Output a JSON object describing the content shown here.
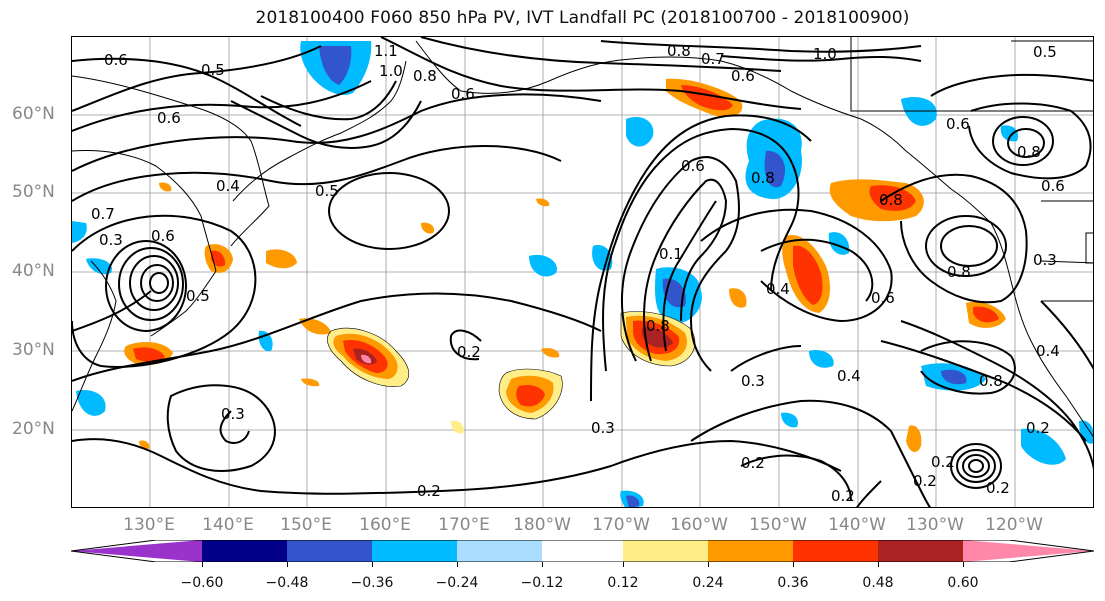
{
  "title": "2018100400 F060 850 hPa PV, IVT Landfall PC (2018100700 - 2018100900)",
  "lat_labels": [
    "60°N",
    "50°N",
    "40°N",
    "30°N",
    "20°N"
  ],
  "lon_labels": [
    "130°E",
    "140°E",
    "150°E",
    "160°E",
    "170°E",
    "180°W",
    "170°W",
    "160°W",
    "150°W",
    "140°W",
    "130°W",
    "120°W"
  ],
  "contour_labels": {
    "l0": "0.6",
    "l1": "0.5",
    "l2": "0.6",
    "l3": "0.4",
    "l4": "0.3",
    "l5": "0.5",
    "l6": "1.1",
    "l7": "1.0",
    "l8": "0.8",
    "l9": "0.6",
    "l10": "0.8",
    "l11": "0.7",
    "l12": "0.6",
    "l13": "1.0",
    "l14": "0.5",
    "l15": "0.6",
    "l16": "0.8",
    "l17": "0.6",
    "l18": "0.8",
    "l19": "0.1",
    "l20": "0.6",
    "l21": "0.5",
    "l22": "0.2",
    "l23": "0.3",
    "l24": "0.8",
    "l25": "0.3",
    "l26": "0.4",
    "l27": "0.3",
    "l28": "0.2",
    "l29": "0.2",
    "l30": "0.4",
    "l31": "0.6",
    "l32": "0.8",
    "l33": "0.8",
    "l34": "0.3",
    "l35": "0.4",
    "l36": "0.8",
    "l37": "0.2",
    "l38": "0.2",
    "l39": "0.2",
    "l40": "0.2",
    "l41": "0.2",
    "l42": "0.7",
    "l43": "0.6"
  },
  "colorbar": {
    "ticks": [
      "−0.60",
      "−0.48",
      "−0.36",
      "−0.24",
      "−0.12",
      "0.12",
      "0.24",
      "0.36",
      "0.48",
      "0.60"
    ],
    "colors": [
      "#9933cc",
      "#000088",
      "#3355cc",
      "#00bbff",
      "#aaddff",
      "#ffffff",
      "#ffee88",
      "#ff9900",
      "#ff3300",
      "#aa2222",
      "#ff88aa"
    ]
  },
  "shading_colors": {
    "neg1": "#00bbff",
    "neg2": "#3355cc",
    "neg3": "#000088",
    "pos1": "#ffee88",
    "pos2": "#ff9900",
    "pos3": "#ff3300",
    "pos4": "#aa2222",
    "pos5": "#ff88aa"
  }
}
